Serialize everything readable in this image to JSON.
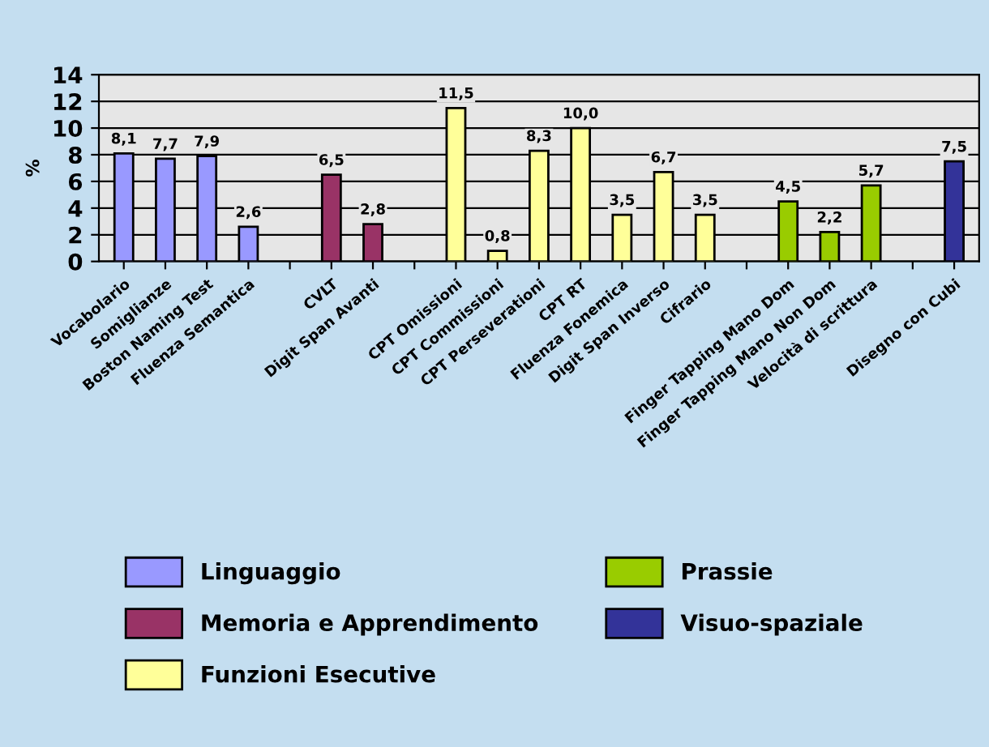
{
  "chart_data": {
    "type": "bar",
    "ylabel": "%",
    "categories": [
      "Vocabolario",
      "Somiglianze",
      "Boston Naming Test",
      "Fluenza Semantica",
      null,
      "CVLT",
      "Digit Span Avanti",
      null,
      "CPT Omissioni",
      "CPT Commissioni",
      "CPT Perseverationi",
      "CPT RT",
      "Fluenza Fonemica",
      "Digit Span Inverso",
      "Cifrario",
      null,
      "Finger Tapping Mano Dom",
      "Finger Tapping Mano Non Dom",
      "Velocità di scrittura",
      null,
      "Disegno con Cubi"
    ],
    "series": [
      {
        "name": "Linguaggio",
        "color": "#9999ff",
        "values": [
          8.1,
          7.7,
          7.9,
          2.6,
          null,
          null,
          null,
          null,
          null,
          null,
          null,
          null,
          null,
          null,
          null,
          null,
          null,
          null,
          null,
          null,
          null
        ],
        "value_labels": [
          "8,1",
          "7,7",
          "7,9",
          "2,6",
          null,
          null,
          null,
          null,
          null,
          null,
          null,
          null,
          null,
          null,
          null,
          null,
          null,
          null,
          null,
          null,
          null
        ]
      },
      {
        "name": "Memoria e Apprendimento",
        "color": "#993366",
        "values": [
          null,
          null,
          null,
          null,
          null,
          6.5,
          2.8,
          null,
          null,
          null,
          null,
          null,
          null,
          null,
          null,
          null,
          null,
          null,
          null,
          null,
          null
        ],
        "value_labels": [
          null,
          null,
          null,
          null,
          null,
          "6,5",
          "2,8",
          null,
          null,
          null,
          null,
          null,
          null,
          null,
          null,
          null,
          null,
          null,
          null,
          null,
          null
        ]
      },
      {
        "name": "Funzioni Esecutive",
        "color": "#ffff99",
        "values": [
          null,
          null,
          null,
          null,
          null,
          null,
          null,
          null,
          11.5,
          0.8,
          8.3,
          10.0,
          3.5,
          6.7,
          3.5,
          null,
          null,
          null,
          null,
          null,
          null
        ],
        "value_labels": [
          null,
          null,
          null,
          null,
          null,
          null,
          null,
          null,
          "11,5",
          "0,8",
          "8,3",
          "10,0",
          "3,5",
          "6,7",
          "3,5",
          null,
          null,
          null,
          null,
          null,
          null
        ]
      },
      {
        "name": "Prassie",
        "color": "#99cc00",
        "values": [
          null,
          null,
          null,
          null,
          null,
          null,
          null,
          null,
          null,
          null,
          null,
          null,
          null,
          null,
          null,
          null,
          4.5,
          2.2,
          5.7,
          null,
          null
        ],
        "value_labels": [
          null,
          null,
          null,
          null,
          null,
          null,
          null,
          null,
          null,
          null,
          null,
          null,
          null,
          null,
          null,
          null,
          "4,5",
          "2,2",
          "5,7",
          null,
          null
        ]
      },
      {
        "name": "Visuo-spaziale",
        "color": "#333399",
        "values": [
          null,
          null,
          null,
          null,
          null,
          null,
          null,
          null,
          null,
          null,
          null,
          null,
          null,
          null,
          null,
          null,
          null,
          null,
          null,
          null,
          7.5
        ],
        "value_labels": [
          null,
          null,
          null,
          null,
          null,
          null,
          null,
          null,
          null,
          null,
          null,
          null,
          null,
          null,
          null,
          null,
          null,
          null,
          null,
          null,
          "7,5"
        ]
      }
    ],
    "ylim": [
      0,
      14
    ],
    "yticks": [
      0,
      2,
      4,
      6,
      8,
      10,
      12,
      14
    ],
    "grid": "y",
    "legend": "bottom"
  }
}
